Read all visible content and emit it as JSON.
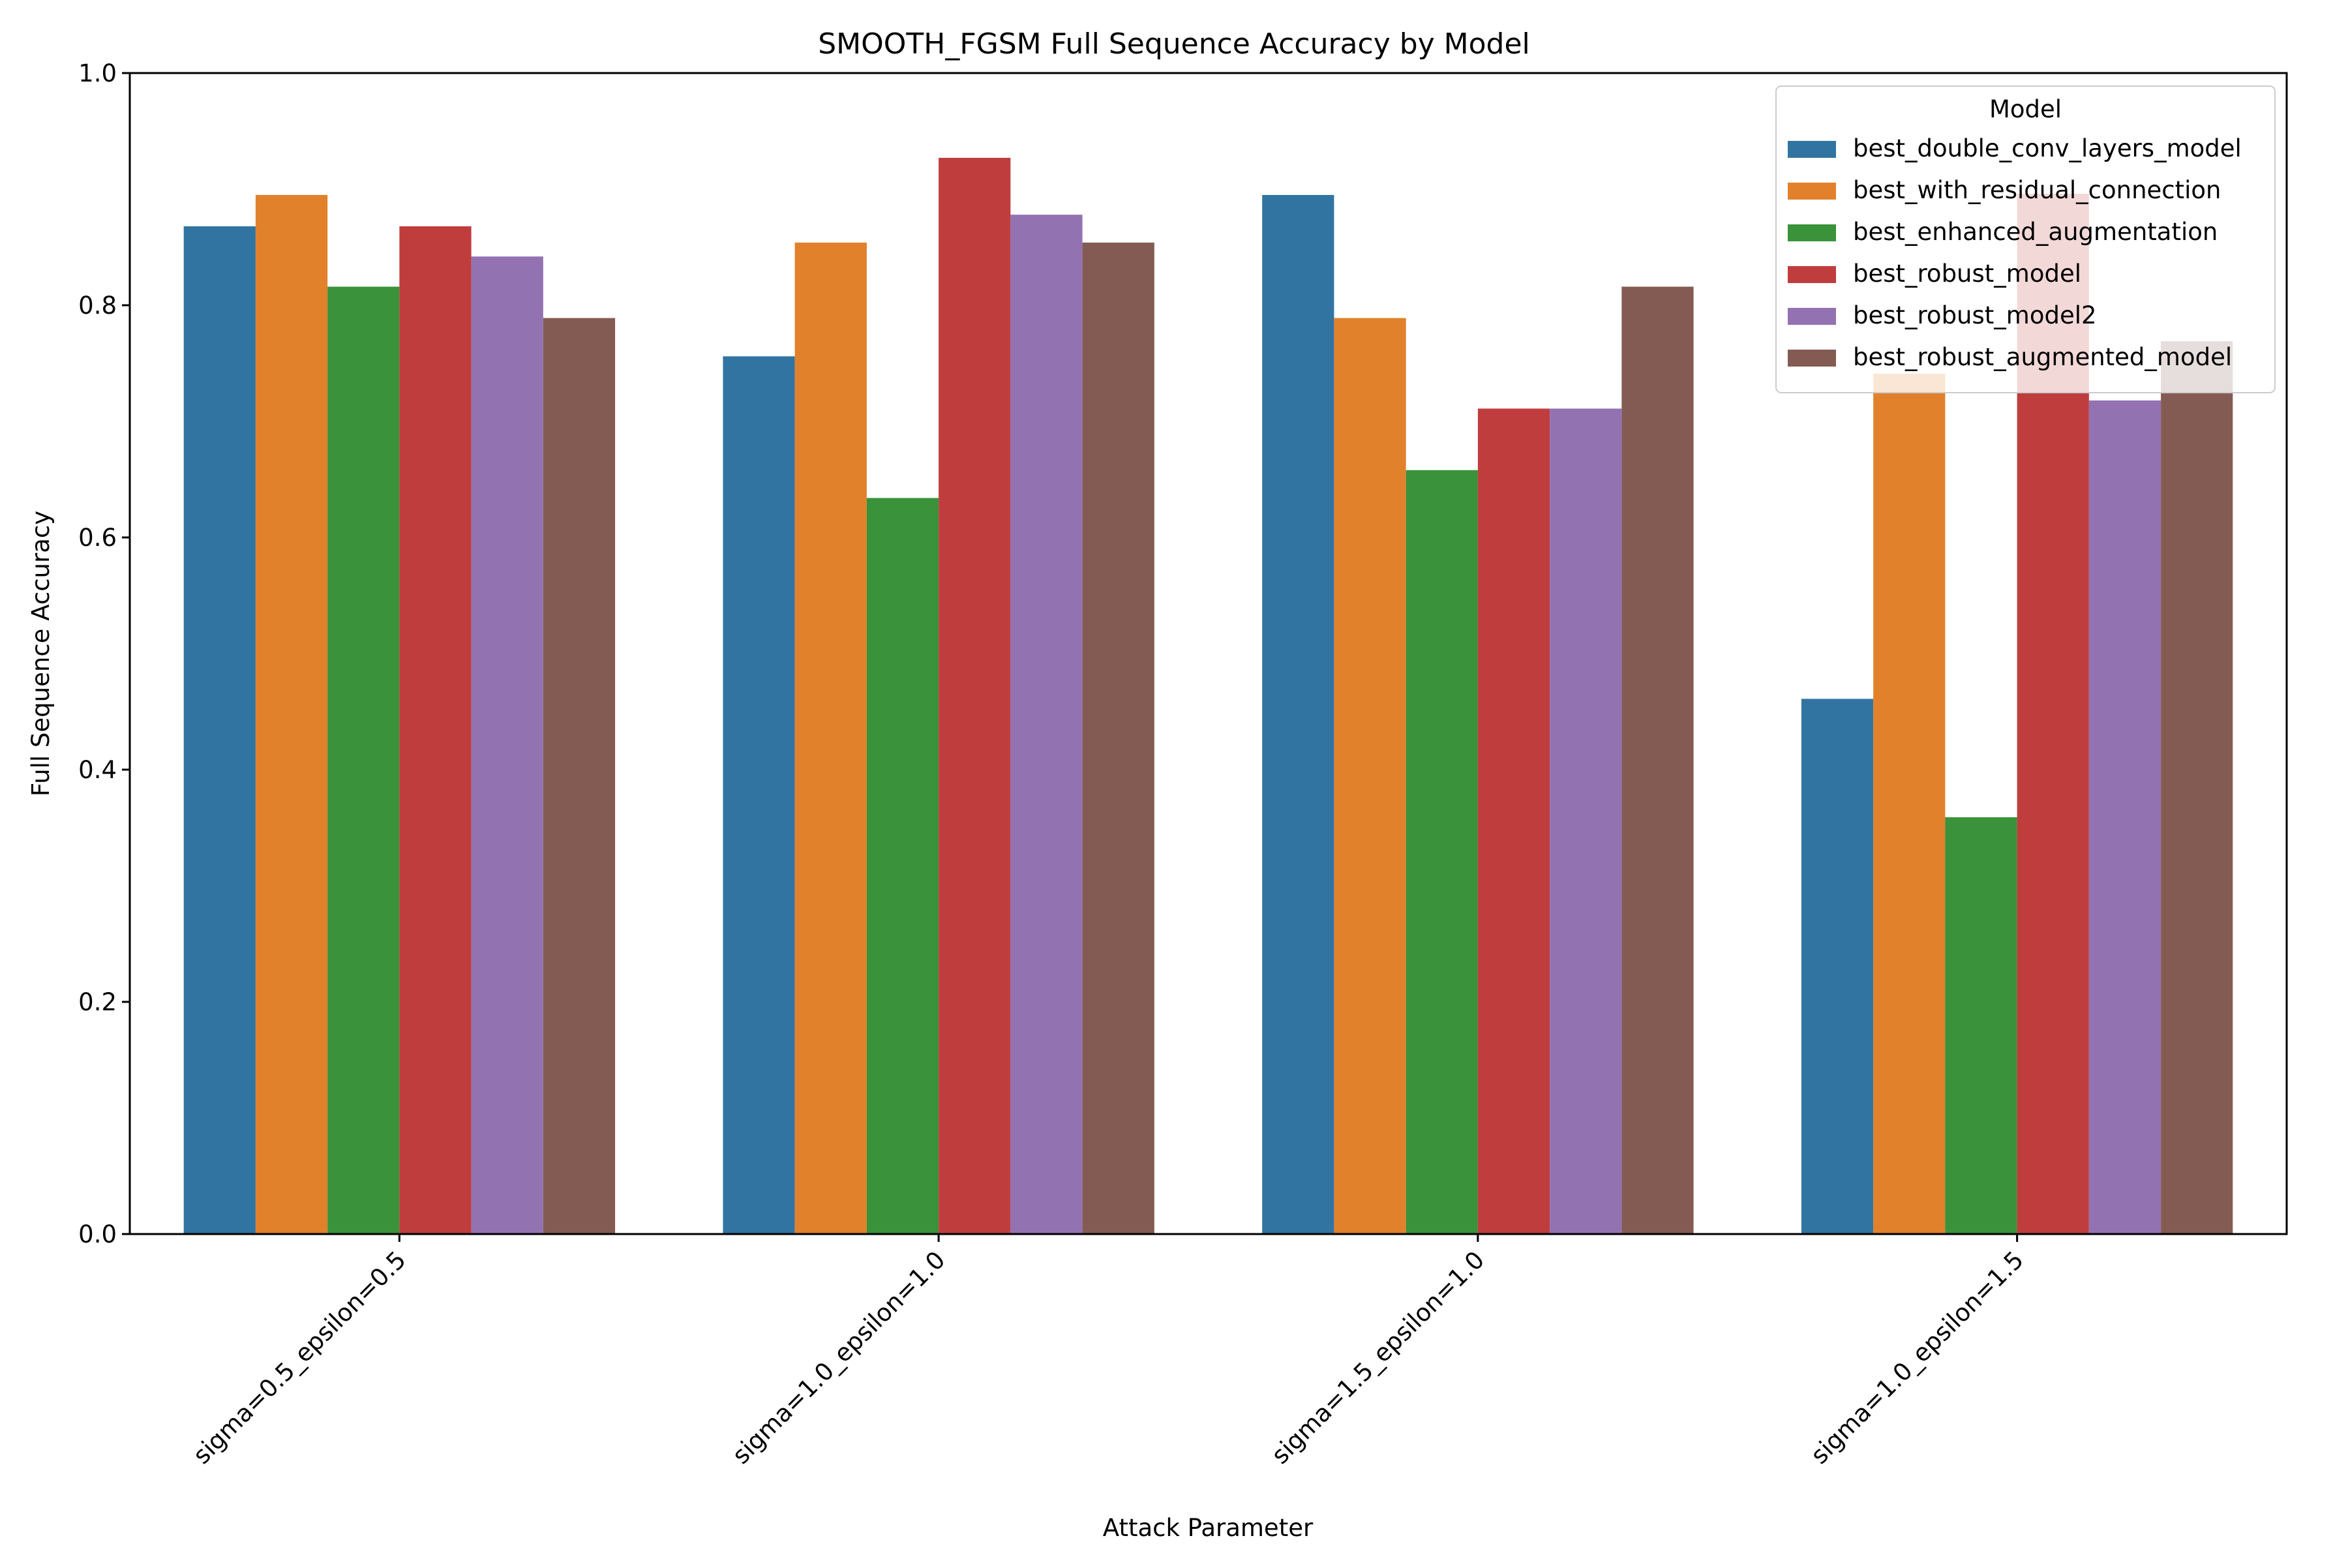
{
  "chart_data": {
    "type": "bar",
    "title": "SMOOTH_FGSM Full Sequence Accuracy by Model",
    "xlabel": "Attack Parameter",
    "ylabel": "Full Sequence Accuracy",
    "ylim": [
      0,
      1.0
    ],
    "yticks": [
      "0.0",
      "0.2",
      "0.4",
      "0.6",
      "0.8",
      "1.0"
    ],
    "categories": [
      "sigma=0.5_epsilon=0.5",
      "sigma=1.0_epsilon=1.0",
      "sigma=1.5_epsilon=1.0",
      "sigma=1.0_epsilon=1.5"
    ],
    "legend": {
      "title": "Model",
      "placement": "top-right"
    },
    "grid": false,
    "series": [
      {
        "name": "best_double_conv_layers_model",
        "color": "#3274a1",
        "values": [
          0.868,
          0.756,
          0.895,
          0.461
        ]
      },
      {
        "name": "best_with_residual_connection",
        "color": "#e1812c",
        "values": [
          0.895,
          0.854,
          0.789,
          0.741
        ]
      },
      {
        "name": "best_enhanced_augmentation",
        "color": "#3a923a",
        "values": [
          0.816,
          0.634,
          0.658,
          0.359
        ]
      },
      {
        "name": "best_robust_model",
        "color": "#c03d3e",
        "values": [
          0.868,
          0.927,
          0.711,
          0.896
        ]
      },
      {
        "name": "best_robust_model2",
        "color": "#9372b2",
        "values": [
          0.842,
          0.878,
          0.711,
          0.718
        ]
      },
      {
        "name": "best_robust_augmented_model",
        "color": "#845b53",
        "values": [
          0.789,
          0.854,
          0.816,
          0.769
        ]
      }
    ]
  }
}
